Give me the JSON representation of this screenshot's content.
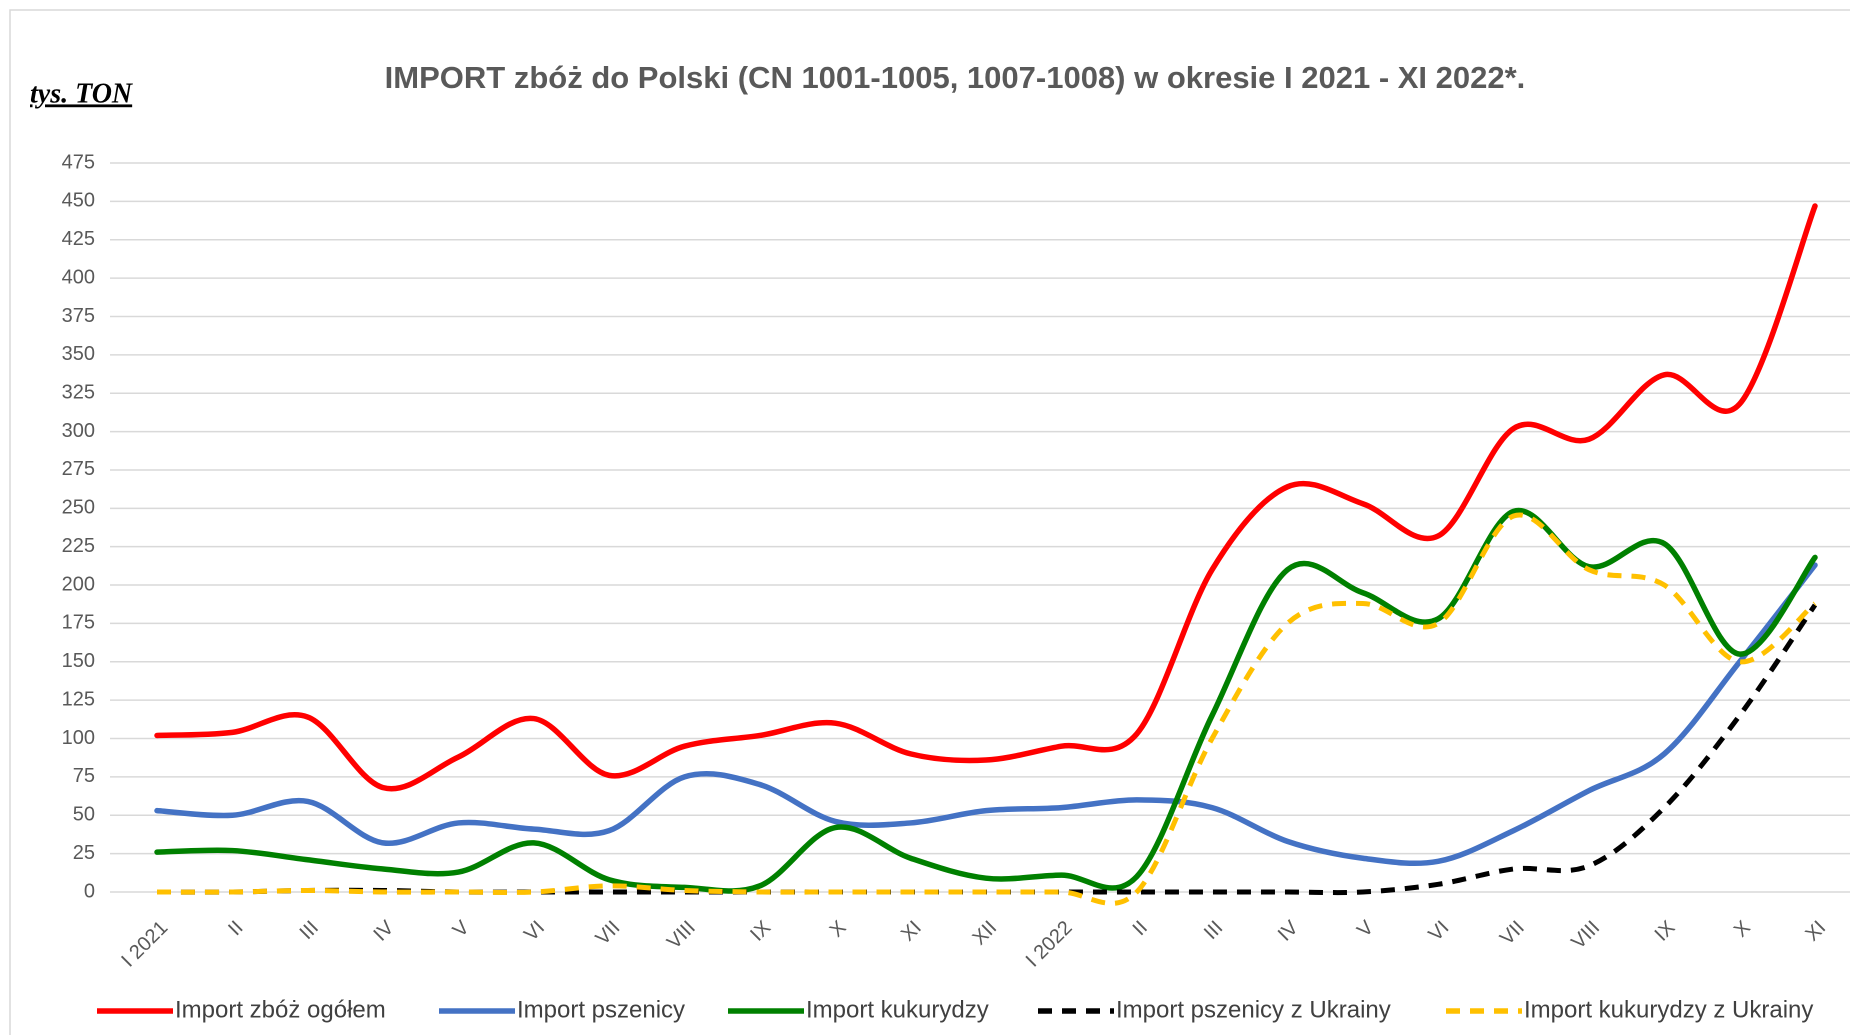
{
  "chart_data": {
    "type": "line",
    "title": "IMPORT zbóż do Polski (CN 1001-1005, 1007-1008) w okresie I 2021 - XI 2022*.",
    "y_label": "tys. TON",
    "categories": [
      "I 2021",
      "II",
      "III",
      "IV",
      "V",
      "VI",
      "VII",
      "VIII",
      "IX",
      "X",
      "XI",
      "XII",
      "I 2022",
      "II",
      "III",
      "IV",
      "V",
      "VI",
      "VII",
      "VIII",
      "IX",
      "X",
      "XI"
    ],
    "ylim": [
      0,
      475
    ],
    "yticks": [
      0,
      25,
      50,
      75,
      100,
      125,
      150,
      175,
      200,
      225,
      250,
      275,
      300,
      325,
      350,
      375,
      400,
      425,
      450,
      475
    ],
    "grid": true,
    "smooth": true,
    "legend": "bottom",
    "series": [
      {
        "name": "Import zbóż ogółem",
        "color": "#ff0000",
        "dashed": false,
        "values": [
          102,
          104,
          114,
          68,
          88,
          113,
          76,
          95,
          102,
          110,
          90,
          86,
          95,
          103,
          210,
          264,
          253,
          232,
          302,
          295,
          337,
          318,
          447
        ]
      },
      {
        "name": "Import pszenicy",
        "color": "#4472c4",
        "dashed": false,
        "values": [
          53,
          50,
          59,
          32,
          45,
          41,
          40,
          75,
          70,
          46,
          45,
          53,
          55,
          60,
          55,
          33,
          22,
          20,
          40,
          66,
          90,
          150,
          213
        ]
      },
      {
        "name": "Import kukurydzy",
        "color": "#008000",
        "dashed": false,
        "values": [
          26,
          27,
          21,
          15,
          13,
          32,
          8,
          3,
          4,
          42,
          22,
          9,
          11,
          10,
          115,
          210,
          195,
          178,
          248,
          212,
          227,
          155,
          218
        ]
      },
      {
        "name": "Import pszenicy z Ukrainy",
        "color": "#000000",
        "dashed": true,
        "values": [
          0,
          0,
          1,
          1,
          0,
          0,
          0,
          0,
          0,
          0,
          0,
          0,
          0,
          0,
          0,
          0,
          0,
          5,
          15,
          17,
          55,
          115,
          187
        ]
      },
      {
        "name": "Import kukurydzy z Ukrainy",
        "color": "#ffc000",
        "dashed": true,
        "values": [
          0,
          0,
          1,
          0,
          0,
          0,
          4,
          1,
          0,
          0,
          0,
          0,
          0,
          0,
          100,
          175,
          188,
          175,
          245,
          210,
          200,
          150,
          188
        ]
      }
    ]
  }
}
